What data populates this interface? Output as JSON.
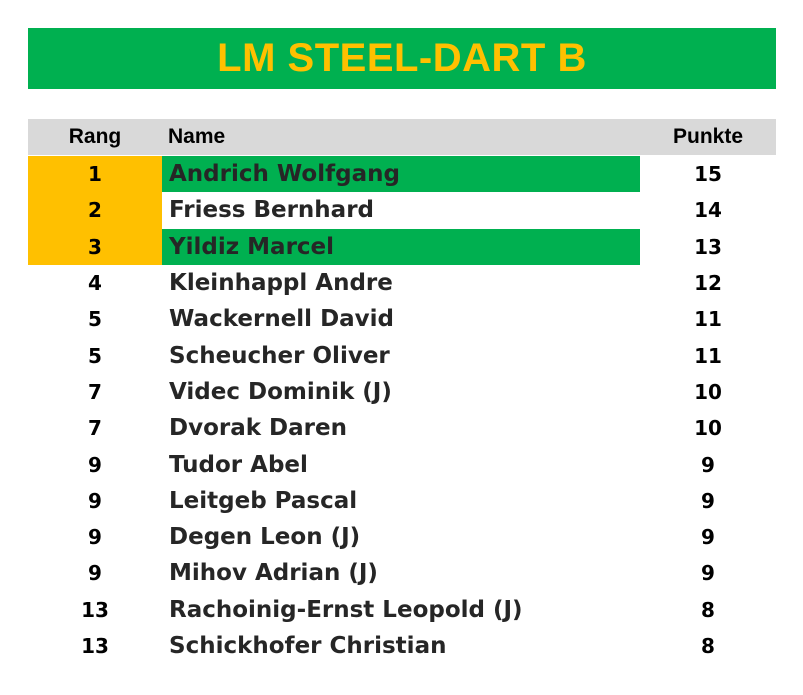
{
  "title": "LM STEEL-DART B",
  "colors": {
    "title_bg": "#00b050",
    "title_text": "#ffc000",
    "header_bg": "#d9d9d9",
    "podium": "#ffc000",
    "highlight": "#00b050"
  },
  "headers": {
    "rang": "Rang",
    "name": "Name",
    "punkte": "Punkte"
  },
  "rows": [
    {
      "rang": "1",
      "name": "Andrich Wolfgang",
      "punkte": "15",
      "podium": true,
      "highlight": true
    },
    {
      "rang": "2",
      "name": "Friess Bernhard",
      "punkte": "14",
      "podium": true,
      "highlight": false
    },
    {
      "rang": "3",
      "name": "Yildiz Marcel",
      "punkte": "13",
      "podium": true,
      "highlight": true
    },
    {
      "rang": "4",
      "name": "Kleinhappl Andre",
      "punkte": "12",
      "podium": false,
      "highlight": false
    },
    {
      "rang": "5",
      "name": "Wackernell David",
      "punkte": "11",
      "podium": false,
      "highlight": false
    },
    {
      "rang": "5",
      "name": "Scheucher Oliver",
      "punkte": "11",
      "podium": false,
      "highlight": false
    },
    {
      "rang": "7",
      "name": "Videc Dominik (J)",
      "punkte": "10",
      "podium": false,
      "highlight": false
    },
    {
      "rang": "7",
      "name": "Dvorak Daren",
      "punkte": "10",
      "podium": false,
      "highlight": false
    },
    {
      "rang": "9",
      "name": "Tudor Abel",
      "punkte": "9",
      "podium": false,
      "highlight": false
    },
    {
      "rang": "9",
      "name": "Leitgeb Pascal",
      "punkte": "9",
      "podium": false,
      "highlight": false
    },
    {
      "rang": "9",
      "name": "Degen Leon (J)",
      "punkte": "9",
      "podium": false,
      "highlight": false
    },
    {
      "rang": "9",
      "name": "Mihov Adrian (J)",
      "punkte": "9",
      "podium": false,
      "highlight": false
    },
    {
      "rang": "13",
      "name": "Rachoinig-Ernst Leopold (J)",
      "punkte": "8",
      "podium": false,
      "highlight": false
    },
    {
      "rang": "13",
      "name": "Schickhofer Christian",
      "punkte": "8",
      "podium": false,
      "highlight": false
    }
  ]
}
